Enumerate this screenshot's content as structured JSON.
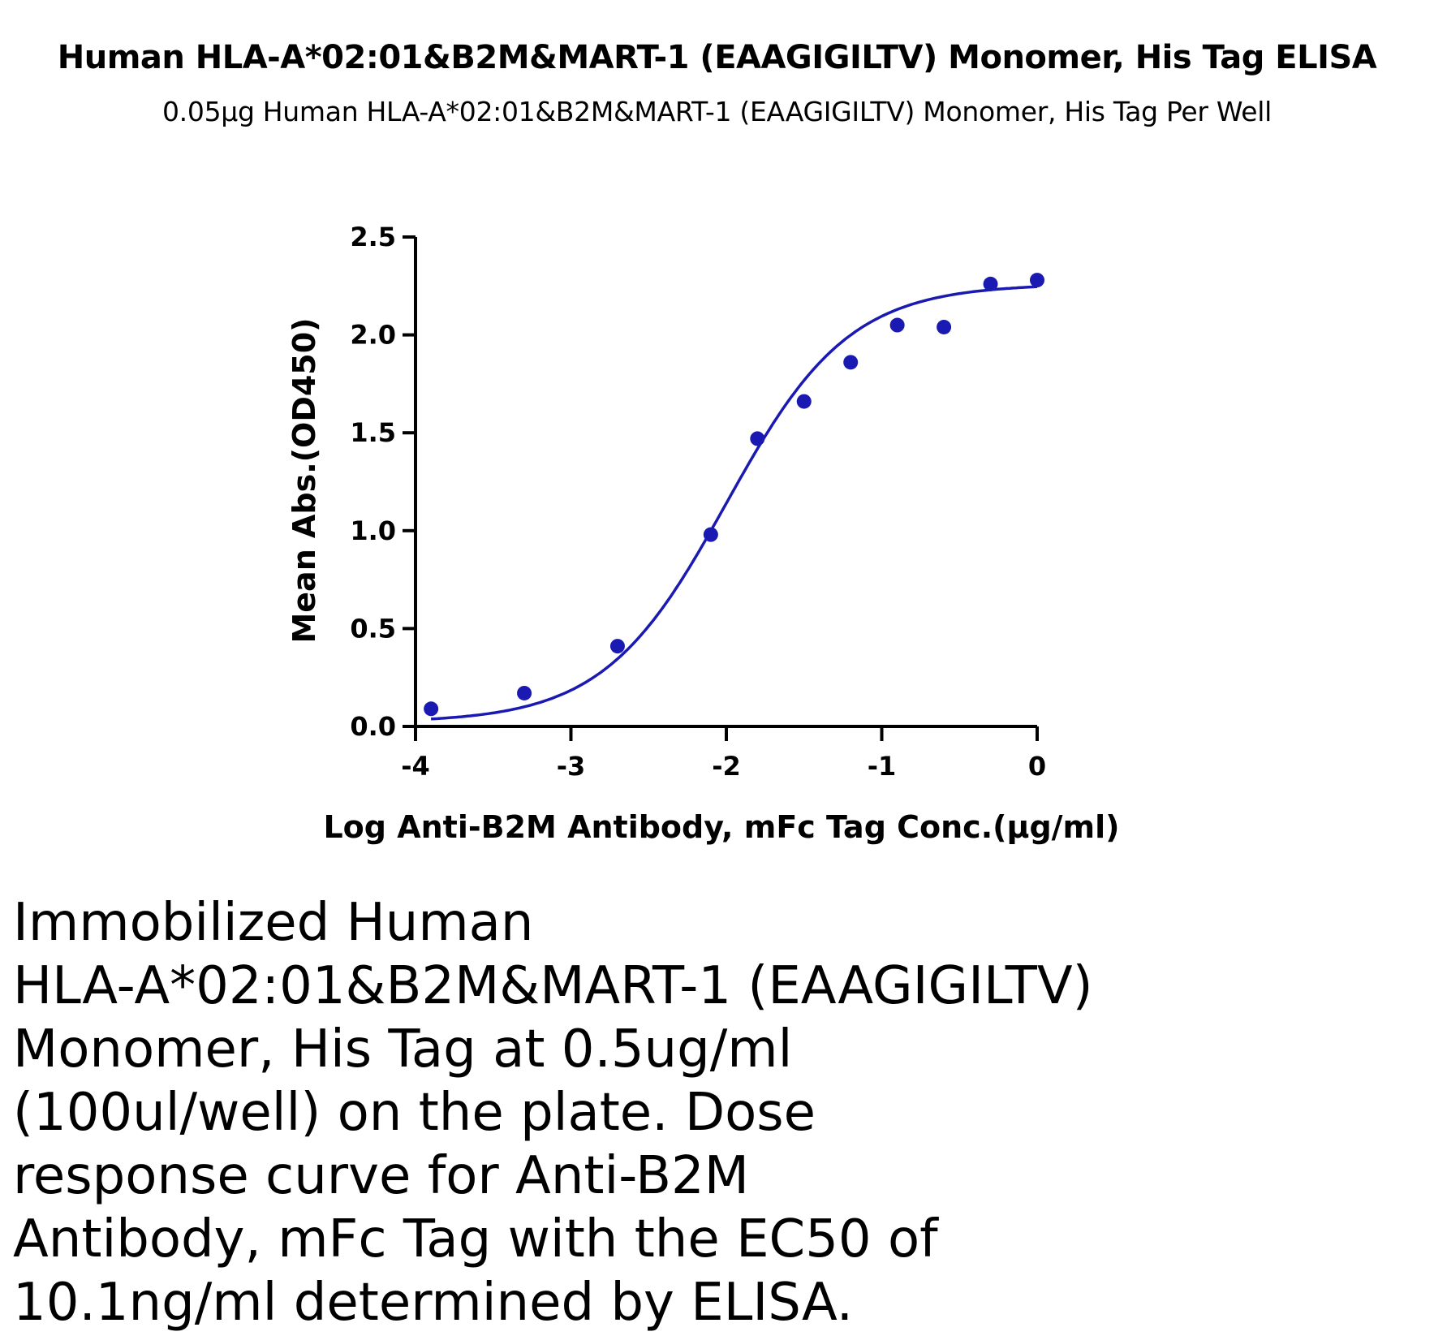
{
  "chart_data": {
    "type": "scatter",
    "title": "Human HLA-A*02:01&B2M&MART-1 (EAAGIGILTV) Monomer, His Tag ELISA",
    "subtitle": "0.05μg Human HLA-A*02:01&B2M&MART-1 (EAAGIGILTV) Monomer, His Tag Per Well",
    "xlabel": "Log Anti-B2M Antibody, mFc Tag Conc.(μg/ml)",
    "ylabel": "Mean Abs.(OD450)",
    "xlim": [
      -4,
      0
    ],
    "ylim": [
      0,
      2.5
    ],
    "xticks": [
      -4,
      -3,
      -2,
      -1,
      0
    ],
    "xtick_labels": [
      "-4",
      "-3",
      "-2",
      "-1",
      "0"
    ],
    "yticks": [
      0,
      0.5,
      1,
      1.5,
      2,
      2.5
    ],
    "ytick_labels": [
      "0.0",
      "0.5",
      "1.0",
      "1.5",
      "2.0",
      "2.5"
    ],
    "series": [
      {
        "x": [
          -3.9,
          -3.3,
          -2.7,
          -2.1,
          -1.8,
          -1.5,
          -1.2,
          -0.9,
          -0.6,
          -0.3,
          0.0
        ],
        "y": [
          0.09,
          0.17,
          0.41,
          0.98,
          1.47,
          1.66,
          1.86,
          2.05,
          2.04,
          2.26,
          2.28
        ]
      }
    ],
    "fit_curve": {
      "model": "4PL",
      "bottom": 0.02,
      "top": 2.26,
      "log_ec50": -2.0,
      "hill": 1.1,
      "x_range": [
        -3.9,
        0.0
      ]
    },
    "grid": false,
    "color": "#1a1ab3"
  },
  "caption": {
    "lines": [
      "Immobilized Human",
      "HLA-A*02:01&B2M&MART-1 (EAAGIGILTV)",
      "Monomer, His Tag at 0.5ug/ml",
      "(100ul/well) on the plate. Dose",
      "response curve for Anti-B2M",
      "Antibody, mFc Tag with the EC50 of",
      "10.1ng/ml determined by ELISA."
    ]
  }
}
